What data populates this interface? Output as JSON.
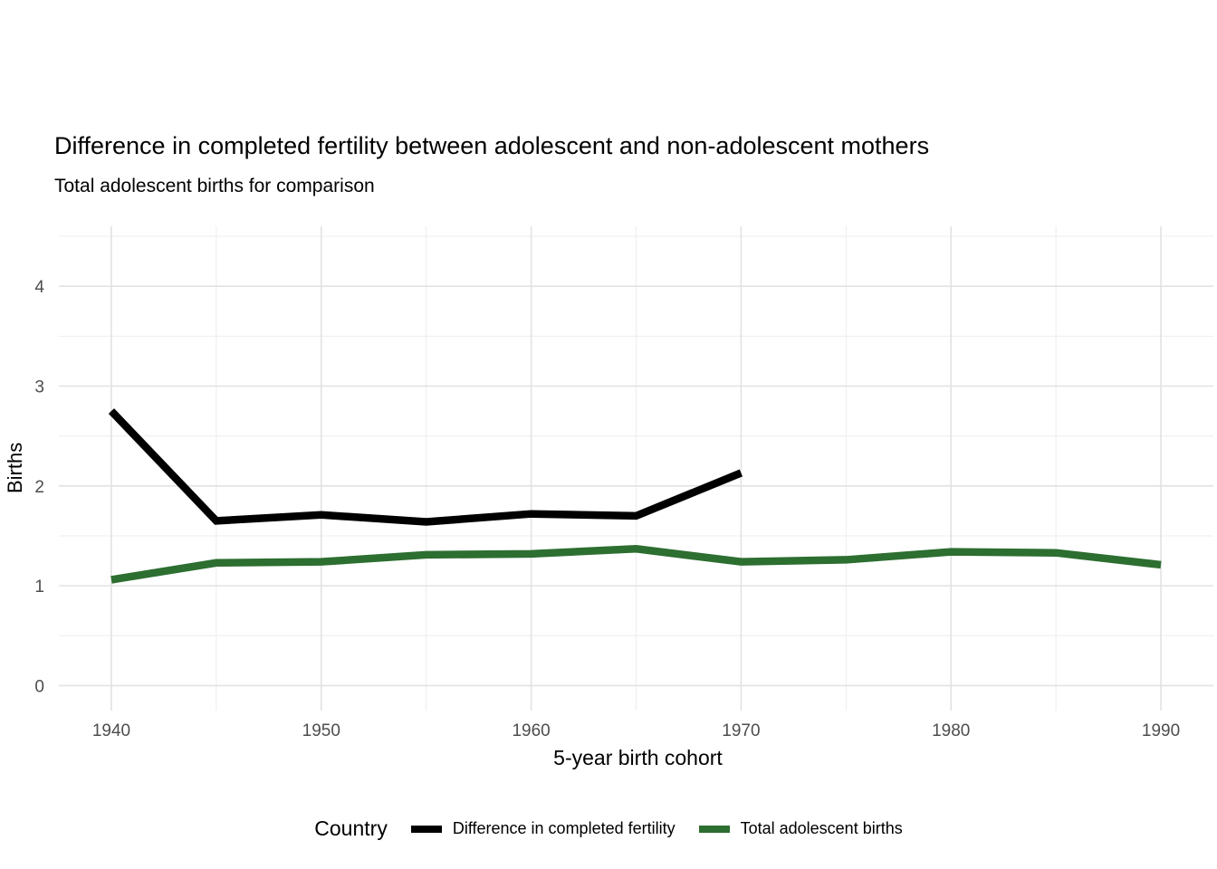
{
  "header": {
    "title": "Difference in completed fertility between adolescent and non-adolescent mothers",
    "subtitle": "Total adolescent births for comparison"
  },
  "chart_data": {
    "type": "line",
    "title": "Difference in completed fertility between adolescent and non-adolescent mothers",
    "subtitle": "Total adolescent births for comparison",
    "xlabel": "5-year birth cohort",
    "ylabel": "Births",
    "xlim": [
      1937.5,
      1992.5
    ],
    "ylim": [
      -0.25,
      4.6
    ],
    "x_ticks": [
      1940,
      1950,
      1960,
      1970,
      1980,
      1990
    ],
    "y_ticks": [
      0,
      1,
      2,
      3,
      4
    ],
    "grid": "major+minor",
    "legend": {
      "title": "Country",
      "position": "bottom"
    },
    "series": [
      {
        "name": "Difference in completed fertility",
        "color": "#000000",
        "x": [
          1940,
          1945,
          1950,
          1955,
          1960,
          1965,
          1970
        ],
        "values": [
          2.75,
          1.65,
          1.71,
          1.64,
          1.72,
          1.7,
          2.13
        ]
      },
      {
        "name": "Total adolescent births",
        "color": "#2d6e31",
        "x": [
          1940,
          1945,
          1950,
          1955,
          1960,
          1965,
          1970,
          1975,
          1980,
          1985,
          1990
        ],
        "values": [
          1.06,
          1.23,
          1.24,
          1.31,
          1.32,
          1.37,
          1.24,
          1.26,
          1.34,
          1.33,
          1.21
        ]
      }
    ]
  }
}
